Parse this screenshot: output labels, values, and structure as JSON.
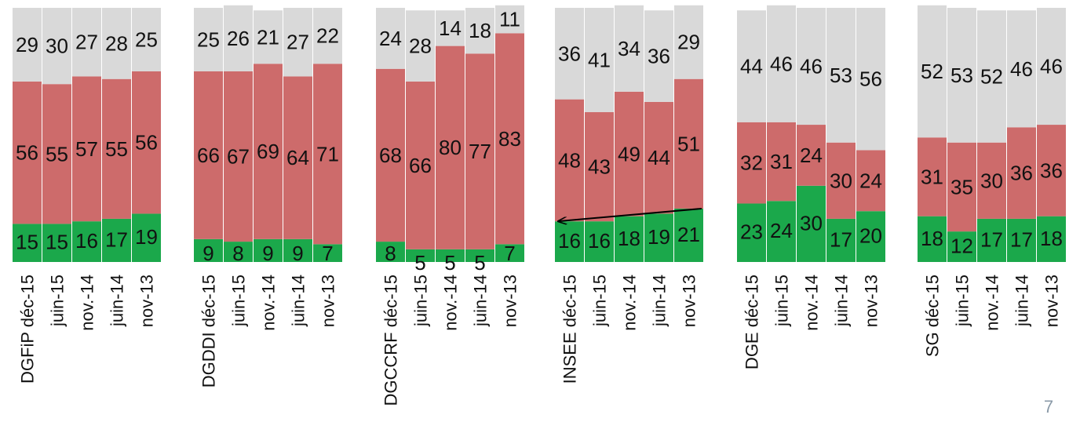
{
  "colors": {
    "green": "#1ba84b",
    "red": "#cd6b6b",
    "gray": "#d9d9d9",
    "arrow": "#000000"
  },
  "slide_number": "7",
  "chart_data": {
    "type": "bar",
    "stacked": true,
    "percent_stacked": true,
    "legend": "none",
    "grid": false,
    "categories": [
      "DGFiP déc-15",
      "juin-15",
      "nov.-14",
      "juin-14",
      "nov-13",
      "DGDDI déc-15",
      "juin-15",
      "nov.-14",
      "juin-14",
      "nov-13",
      "DGCCRF déc-15",
      "juin-15",
      "nov.-14",
      "juin-14",
      "nov-13",
      "INSEE déc-15",
      "juin-15",
      "nov.-14",
      "juin-14",
      "nov-13",
      "DGE déc-15",
      "juin-15",
      "nov.-14",
      "juin-14",
      "nov-13",
      "SG déc-15",
      "juin-15",
      "nov.-14",
      "juin-14",
      "nov-13"
    ],
    "groups": [
      {
        "label": "DGFiP",
        "size": 5
      },
      {
        "label": "DGDDI",
        "size": 5
      },
      {
        "label": "DGCCRF",
        "size": 5
      },
      {
        "label": "INSEE",
        "size": 5
      },
      {
        "label": "DGE",
        "size": 5
      },
      {
        "label": "SG",
        "size": 5
      }
    ],
    "series": [
      {
        "color": "green",
        "values": [
          15,
          15,
          16,
          17,
          19,
          9,
          8,
          9,
          9,
          7,
          8,
          5,
          5,
          5,
          7,
          16,
          16,
          18,
          19,
          21,
          23,
          24,
          30,
          17,
          20,
          18,
          12,
          17,
          17,
          18
        ]
      },
      {
        "color": "red",
        "values": [
          56,
          55,
          57,
          55,
          56,
          66,
          67,
          69,
          64,
          71,
          68,
          66,
          80,
          77,
          83,
          48,
          43,
          49,
          44,
          51,
          32,
          31,
          24,
          30,
          24,
          31,
          35,
          30,
          36,
          36
        ]
      },
      {
        "color": "gray",
        "values": [
          29,
          30,
          27,
          28,
          25,
          25,
          26,
          21,
          27,
          22,
          24,
          28,
          14,
          18,
          11,
          36,
          41,
          34,
          36,
          29,
          44,
          46,
          46,
          53,
          56,
          52,
          53,
          52,
          46,
          46
        ]
      }
    ],
    "ylim": [
      0,
      100
    ],
    "annotations": [
      {
        "type": "arrow",
        "from_category_index": 19,
        "to_category_index": 15
      }
    ]
  }
}
